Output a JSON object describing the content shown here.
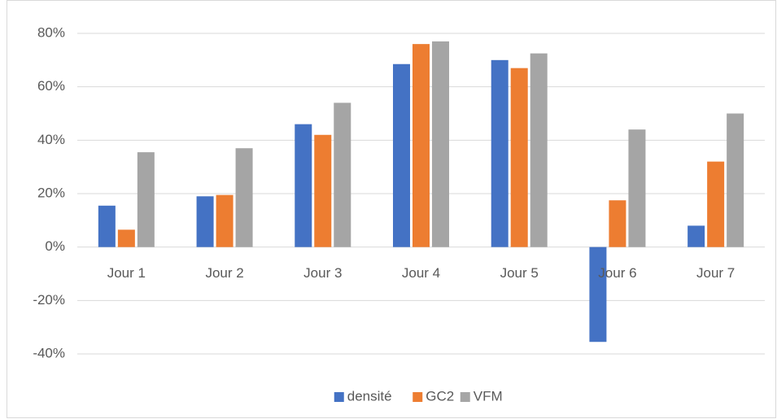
{
  "chart_data": {
    "type": "bar",
    "categories": [
      "Jour 1",
      "Jour 2",
      "Jour 3",
      "Jour 4",
      "Jour 5",
      "Jour 6",
      "Jour 7"
    ],
    "series": [
      {
        "name": "densité",
        "color": "#4472c4",
        "values": [
          15.5,
          19,
          46,
          68.5,
          70,
          -35.5,
          8
        ]
      },
      {
        "name": "GC2",
        "color": "#ed7d31",
        "values": [
          6.5,
          19.5,
          42,
          76,
          67,
          17.5,
          32
        ]
      },
      {
        "name": "VFM",
        "color": "#a5a5a5",
        "values": [
          35.5,
          37,
          54,
          77,
          72.5,
          44,
          50
        ]
      }
    ],
    "ylim": [
      -40,
      80
    ],
    "yticks": [
      {
        "value": -40,
        "label": "-40%"
      },
      {
        "value": -20,
        "label": "-20%"
      },
      {
        "value": 0,
        "label": "0%"
      },
      {
        "value": 20,
        "label": "20%"
      },
      {
        "value": 40,
        "label": "40%"
      },
      {
        "value": 60,
        "label": "60%"
      },
      {
        "value": 80,
        "label": "80%"
      }
    ],
    "grid": true,
    "legend": "bottom"
  }
}
